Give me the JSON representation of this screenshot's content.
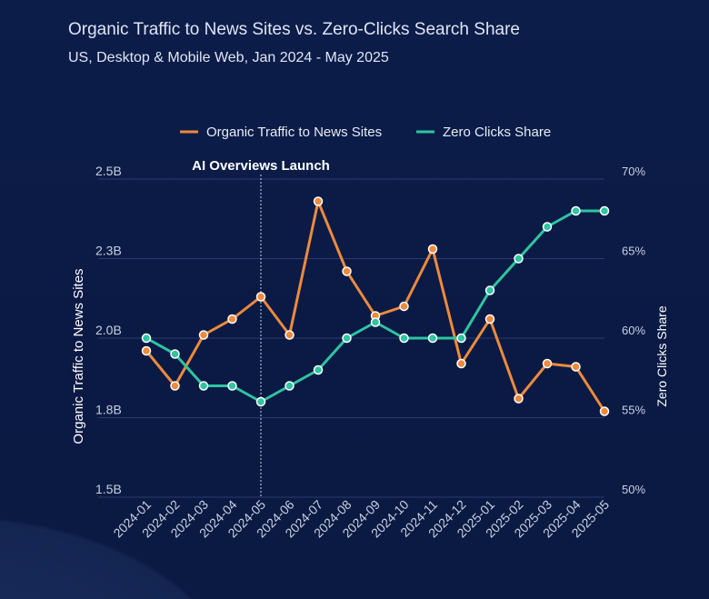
{
  "chart_data": {
    "type": "line",
    "title": "Organic Traffic to News Sites vs. Zero-Clicks Search Share",
    "subtitle": "US, Desktop & Mobile Web, Jan 2024 - May 2025",
    "x": [
      "2024-01",
      "2024-02",
      "2024-03",
      "2024-04",
      "2024-05",
      "2024-06",
      "2024-07",
      "2024-08",
      "2024-09",
      "2024-10",
      "2024-11",
      "2024-12",
      "2025-01",
      "2025-02",
      "2025-03",
      "2025-04",
      "2025-05"
    ],
    "series": [
      {
        "name": "Organic Traffic to News Sites",
        "axis": "left",
        "unit": "B",
        "color": "#ef8a3c",
        "values": [
          1.96,
          1.85,
          2.01,
          2.06,
          2.13,
          2.01,
          2.43,
          2.21,
          2.07,
          2.1,
          2.28,
          1.92,
          2.06,
          1.81,
          1.92,
          1.91,
          1.77
        ]
      },
      {
        "name": "Zero Clicks Share",
        "axis": "right",
        "unit": "%",
        "color": "#2fc4a2",
        "values": [
          60,
          59,
          57,
          57,
          56,
          57,
          58,
          60,
          61,
          60,
          60,
          60,
          63,
          65,
          67,
          68,
          68
        ]
      }
    ],
    "ylabel": "Organic Traffic to News Sites",
    "y2label": "Zero Clicks Share",
    "ylim": [
      1.5,
      2.5
    ],
    "y2lim": [
      50,
      70
    ],
    "yticks": [
      "2.5B",
      "2.3B",
      "2.0B",
      "1.8B",
      "1.5B"
    ],
    "y2ticks": [
      "70%",
      "65%",
      "60%",
      "55%",
      "50%"
    ],
    "annotation": {
      "label": "AI Overviews Launch",
      "x": "2024-05"
    },
    "legend": "top-center",
    "grid": true
  }
}
